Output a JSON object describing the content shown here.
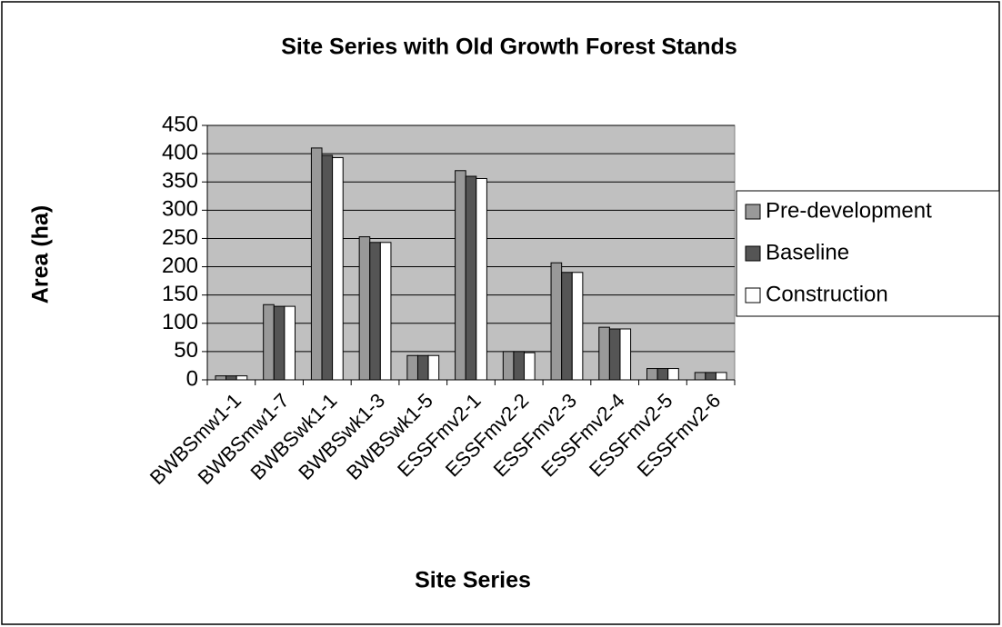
{
  "chart_data": {
    "type": "bar",
    "title": "Site Series with Old Growth Forest Stands",
    "x_label": "Site Series",
    "y_label": "Area (ha)",
    "categories": [
      "BWBSmw1-1",
      "BWBSmw1-7",
      "BWBSwk1-1",
      "BWBSwk1-3",
      "BWBSwk1-5",
      "ESSFmv2-1",
      "ESSFmv2-2",
      "ESSFmv2-3",
      "ESSFmv2-4",
      "ESSFmv2-5",
      "ESSFmv2-6"
    ],
    "series": [
      {
        "name": "Pre-development",
        "color": "#999999",
        "values": [
          7,
          133,
          410,
          253,
          43,
          370,
          50,
          207,
          93,
          20,
          13
        ]
      },
      {
        "name": "Baseline",
        "color": "#555555",
        "values": [
          7,
          130,
          397,
          243,
          43,
          360,
          50,
          190,
          90,
          20,
          13
        ]
      },
      {
        "name": "Construction",
        "color": "#ffffff",
        "values": [
          7,
          130,
          393,
          243,
          43,
          356,
          48,
          190,
          90,
          20,
          13
        ]
      }
    ],
    "ylim": [
      0,
      450
    ],
    "yticks": [
      0,
      50,
      100,
      150,
      200,
      250,
      300,
      350,
      400,
      450
    ],
    "grid": true,
    "legend": "right"
  }
}
